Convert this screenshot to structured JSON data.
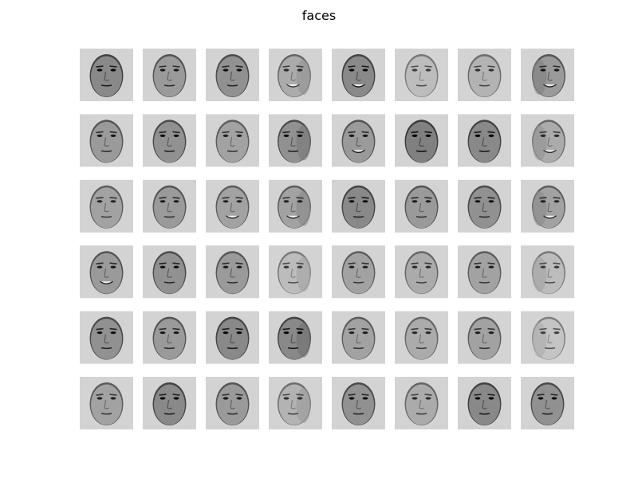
{
  "figure": {
    "title": "faces"
  },
  "grid": {
    "rows": 6,
    "cols": 8,
    "tile_background": "#d3d3d3",
    "faces": [
      {
        "row": 0,
        "col": 0,
        "pose": "frontal",
        "expression": "neutral",
        "tone": 0.45
      },
      {
        "row": 0,
        "col": 1,
        "pose": "frontal",
        "expression": "neutral",
        "tone": 0.55
      },
      {
        "row": 0,
        "col": 2,
        "pose": "frontal",
        "expression": "neutral",
        "tone": 0.5
      },
      {
        "row": 0,
        "col": 3,
        "pose": "left",
        "expression": "smile",
        "tone": 0.65
      },
      {
        "row": 0,
        "col": 4,
        "pose": "frontal",
        "expression": "smile",
        "tone": 0.45
      },
      {
        "row": 0,
        "col": 5,
        "pose": "frontal",
        "expression": "neutral",
        "tone": 0.75
      },
      {
        "row": 0,
        "col": 6,
        "pose": "frontal",
        "expression": "neutral",
        "tone": 0.7
      },
      {
        "row": 0,
        "col": 7,
        "pose": "right",
        "expression": "smile",
        "tone": 0.55
      },
      {
        "row": 1,
        "col": 0,
        "pose": "frontal",
        "expression": "neutral",
        "tone": 0.55
      },
      {
        "row": 1,
        "col": 1,
        "pose": "frontal",
        "expression": "neutral",
        "tone": 0.5
      },
      {
        "row": 1,
        "col": 2,
        "pose": "frontal",
        "expression": "neutral",
        "tone": 0.6
      },
      {
        "row": 1,
        "col": 3,
        "pose": "left",
        "expression": "neutral",
        "tone": 0.5
      },
      {
        "row": 1,
        "col": 4,
        "pose": "frontal",
        "expression": "smile",
        "tone": 0.55
      },
      {
        "row": 1,
        "col": 5,
        "pose": "frontal",
        "expression": "neutral",
        "tone": 0.4
      },
      {
        "row": 1,
        "col": 6,
        "pose": "frontal",
        "expression": "neutral",
        "tone": 0.45
      },
      {
        "row": 1,
        "col": 7,
        "pose": "right",
        "expression": "smile",
        "tone": 0.65
      },
      {
        "row": 2,
        "col": 0,
        "pose": "frontal",
        "expression": "neutral",
        "tone": 0.6
      },
      {
        "row": 2,
        "col": 1,
        "pose": "frontal",
        "expression": "neutral",
        "tone": 0.55
      },
      {
        "row": 2,
        "col": 2,
        "pose": "frontal",
        "expression": "smile",
        "tone": 0.6
      },
      {
        "row": 2,
        "col": 3,
        "pose": "left",
        "expression": "smile",
        "tone": 0.6
      },
      {
        "row": 2,
        "col": 4,
        "pose": "frontal",
        "expression": "neutral",
        "tone": 0.45
      },
      {
        "row": 2,
        "col": 5,
        "pose": "frontal",
        "expression": "neutral",
        "tone": 0.55
      },
      {
        "row": 2,
        "col": 6,
        "pose": "frontal",
        "expression": "neutral",
        "tone": 0.5
      },
      {
        "row": 2,
        "col": 7,
        "pose": "right",
        "expression": "smile",
        "tone": 0.6
      },
      {
        "row": 3,
        "col": 0,
        "pose": "frontal",
        "expression": "smile",
        "tone": 0.55
      },
      {
        "row": 3,
        "col": 1,
        "pose": "frontal",
        "expression": "neutral",
        "tone": 0.5
      },
      {
        "row": 3,
        "col": 2,
        "pose": "frontal",
        "expression": "neutral",
        "tone": 0.55
      },
      {
        "row": 3,
        "col": 3,
        "pose": "left",
        "expression": "neutral",
        "tone": 0.75
      },
      {
        "row": 3,
        "col": 4,
        "pose": "frontal",
        "expression": "neutral",
        "tone": 0.6
      },
      {
        "row": 3,
        "col": 5,
        "pose": "frontal",
        "expression": "neutral",
        "tone": 0.65
      },
      {
        "row": 3,
        "col": 6,
        "pose": "frontal",
        "expression": "neutral",
        "tone": 0.6
      },
      {
        "row": 3,
        "col": 7,
        "pose": "right",
        "expression": "neutral",
        "tone": 0.75
      },
      {
        "row": 4,
        "col": 0,
        "pose": "frontal",
        "expression": "neutral",
        "tone": 0.5
      },
      {
        "row": 4,
        "col": 1,
        "pose": "frontal",
        "expression": "neutral",
        "tone": 0.55
      },
      {
        "row": 4,
        "col": 2,
        "pose": "frontal",
        "expression": "neutral",
        "tone": 0.45
      },
      {
        "row": 4,
        "col": 3,
        "pose": "left",
        "expression": "neutral",
        "tone": 0.45
      },
      {
        "row": 4,
        "col": 4,
        "pose": "frontal",
        "expression": "neutral",
        "tone": 0.6
      },
      {
        "row": 4,
        "col": 5,
        "pose": "frontal",
        "expression": "neutral",
        "tone": 0.65
      },
      {
        "row": 4,
        "col": 6,
        "pose": "frontal",
        "expression": "neutral",
        "tone": 0.6
      },
      {
        "row": 4,
        "col": 7,
        "pose": "right",
        "expression": "neutral",
        "tone": 0.8
      },
      {
        "row": 5,
        "col": 0,
        "pose": "frontal",
        "expression": "neutral",
        "tone": 0.6
      },
      {
        "row": 5,
        "col": 1,
        "pose": "frontal",
        "expression": "neutral",
        "tone": 0.45
      },
      {
        "row": 5,
        "col": 2,
        "pose": "frontal",
        "expression": "neutral",
        "tone": 0.55
      },
      {
        "row": 5,
        "col": 3,
        "pose": "left",
        "expression": "neutral",
        "tone": 0.7
      },
      {
        "row": 5,
        "col": 4,
        "pose": "frontal",
        "expression": "neutral",
        "tone": 0.5
      },
      {
        "row": 5,
        "col": 5,
        "pose": "frontal",
        "expression": "neutral",
        "tone": 0.65
      },
      {
        "row": 5,
        "col": 6,
        "pose": "frontal",
        "expression": "neutral",
        "tone": 0.45
      },
      {
        "row": 5,
        "col": 7,
        "pose": "frontal",
        "expression": "neutral",
        "tone": 0.5
      }
    ]
  }
}
